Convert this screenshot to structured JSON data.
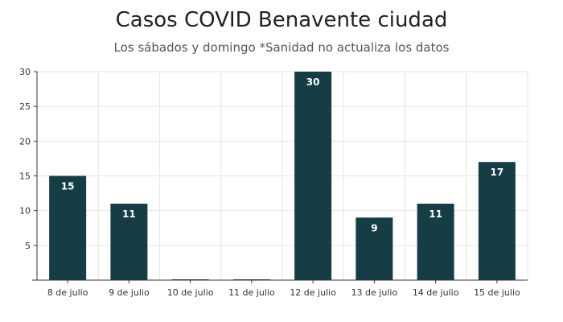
{
  "chart_data": {
    "type": "bar",
    "title": "Casos COVID Benavente ciudad",
    "subtitle": "Los sábados y domingo *Sanidad no actualiza los datos",
    "xlabel": "",
    "ylabel": "",
    "categories": [
      "8 de julio",
      "9 de julio",
      "10 de julio",
      "11 de julio",
      "12 de julio",
      "13 de julio",
      "14 de julio",
      "15 de julio"
    ],
    "values": [
      15,
      11,
      0,
      0,
      30,
      9,
      11,
      17
    ],
    "data_labels": [
      "15",
      "11",
      "",
      "",
      "30",
      "9",
      "11",
      "17"
    ],
    "yticks": [
      "0",
      "5",
      "10",
      "15",
      "20",
      "25",
      "30"
    ],
    "ylim": [
      0,
      30
    ],
    "grid": true,
    "legend": "none",
    "colors": {
      "bar": "#163d45",
      "grid": "#e6e6e6",
      "axis": "#333333"
    }
  }
}
